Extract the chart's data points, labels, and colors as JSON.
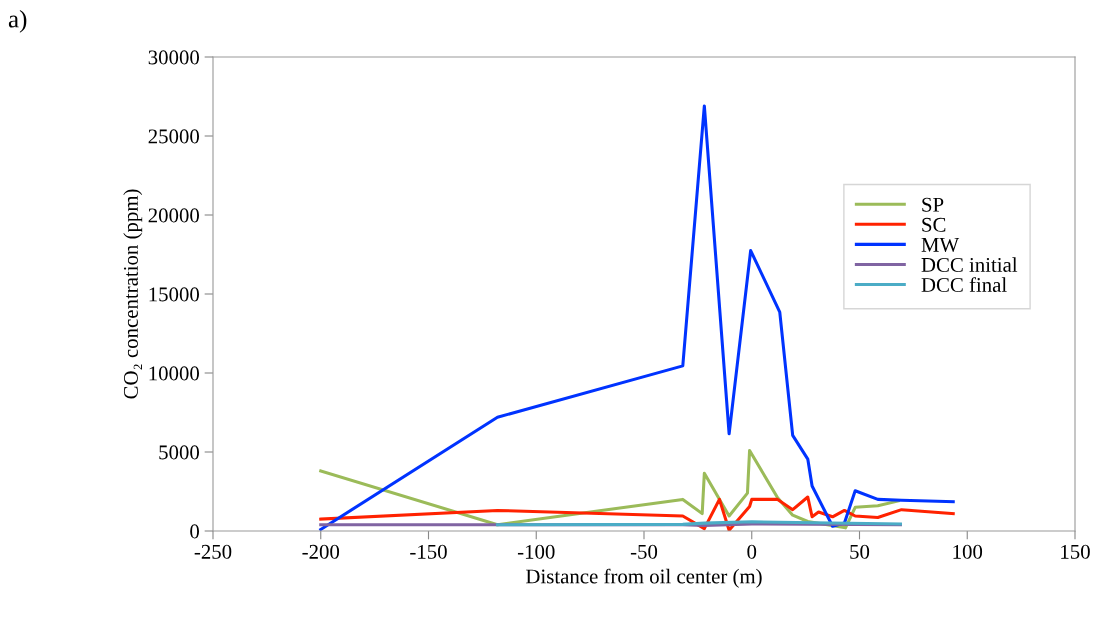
{
  "chart_data": {
    "type": "line",
    "xlabel": "Distance from oil center (m)",
    "ylabel": "CO₂ concentration (ppm)",
    "annotations": [
      "a)"
    ],
    "xlim": [
      -250,
      150
    ],
    "xticks": [
      -250,
      -200,
      -150,
      -100,
      -50,
      0,
      50,
      100,
      150
    ],
    "ylim": [
      0,
      30000
    ],
    "yticks": [
      0,
      5000,
      10000,
      15000,
      20000,
      25000,
      30000
    ],
    "grid": false,
    "legend": "right",
    "marker": "none",
    "line_style": "solid",
    "series": [
      {
        "name": "SP",
        "color": "#9bbb59",
        "x": [
          -200,
          -118,
          -32,
          -23,
          -22,
          -10.5,
          -2,
          -1,
          12,
          19,
          26,
          43.5,
          48,
          58.5,
          68
        ],
        "values": [
          3800,
          400,
          2000,
          1100,
          3650,
          950,
          2400,
          5100,
          2100,
          1000,
          600,
          200,
          1500,
          1600,
          1900
        ]
      },
      {
        "name": "SC",
        "color": "#ff2200",
        "x": [
          -200,
          -118,
          -32,
          -22,
          -15,
          -10.5,
          -1,
          0,
          12,
          19,
          26,
          28,
          31,
          37.5,
          43,
          48,
          58.5,
          69.5,
          93.5
        ],
        "values": [
          750,
          1300,
          950,
          150,
          2000,
          50,
          1550,
          2000,
          2000,
          1350,
          2150,
          900,
          1200,
          900,
          1300,
          950,
          850,
          1350,
          1100
        ]
      },
      {
        "name": "MW",
        "color": "#0033ff",
        "x": [
          -200,
          -118,
          -32,
          -22,
          -10.5,
          -0.5,
          13,
          19,
          26,
          28,
          37.5,
          43,
          48,
          58.5,
          69.5,
          93.5
        ],
        "values": [
          100,
          7200,
          10450,
          26900,
          6150,
          17750,
          13850,
          6050,
          4550,
          2850,
          300,
          500,
          2550,
          2000,
          1950,
          1850
        ]
      },
      {
        "name": "DCC initial",
        "color": "#8064a2",
        "x": [
          -200,
          -118,
          -32,
          -22,
          0,
          69
        ],
        "values": [
          400,
          400,
          400,
          350,
          450,
          400
        ]
      },
      {
        "name": "DCC final",
        "color": "#4bacc6",
        "x": [
          -118,
          -32,
          -22,
          0,
          69
        ],
        "values": [
          400,
          420,
          500,
          580,
          450
        ]
      }
    ]
  }
}
